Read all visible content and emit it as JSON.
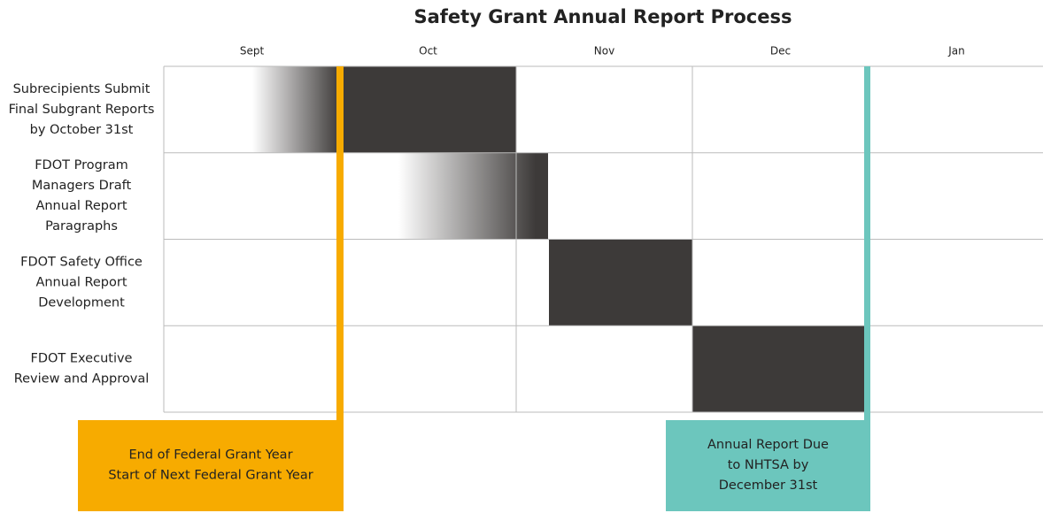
{
  "title": "Safety Grant Annual Report Process",
  "months": [
    "Sept",
    "Oct",
    "Nov",
    "Dec",
    "Jan"
  ],
  "rows": [
    {
      "label": [
        "Subrecipients Submit",
        "Final Subgrant Reports",
        "by October 31st"
      ]
    },
    {
      "label": [
        "FDOT Program",
        "Managers Draft",
        "Annual Report",
        "Paragraphs"
      ]
    },
    {
      "label": [
        "FDOT Safety Office",
        "Annual Report",
        "Development"
      ]
    },
    {
      "label": [
        "FDOT Executive",
        "Review and Approval"
      ]
    }
  ],
  "callouts": [
    {
      "label": [
        "End of Federal Grant Year",
        "Start of Next Federal Grant Year"
      ]
    },
    {
      "label": [
        "Annual Report Due",
        "to NHTSA by",
        "December 31st"
      ]
    }
  ]
}
